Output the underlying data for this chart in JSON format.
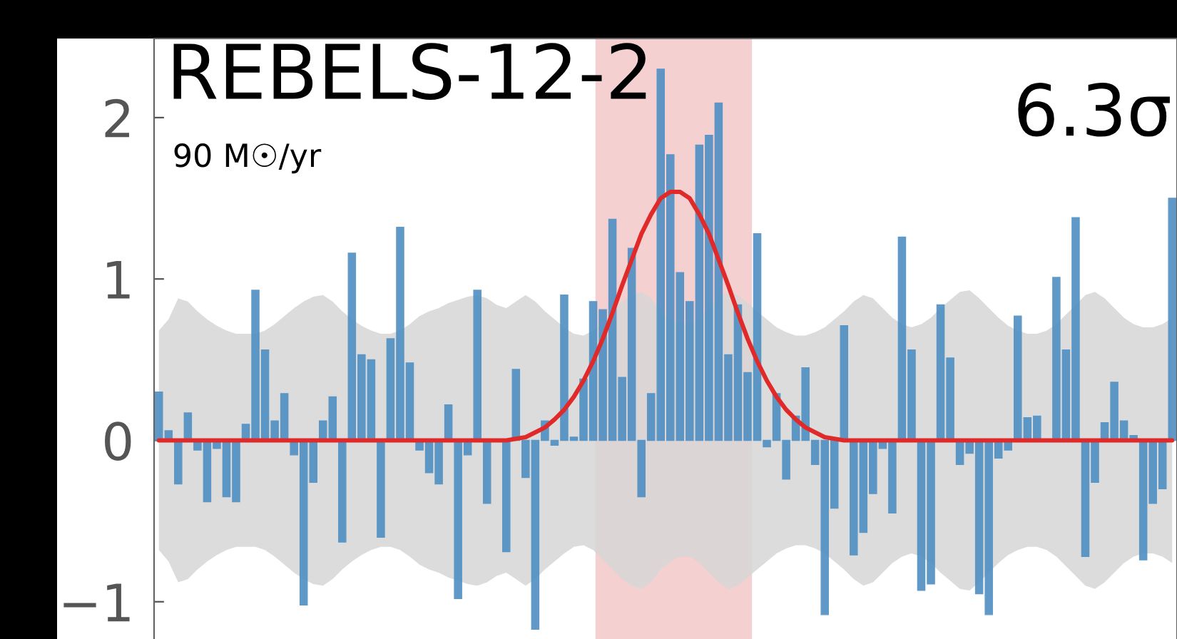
{
  "chart_data": {
    "type": "bar",
    "title": "REBELS-12-2",
    "subtitle": "90 M☉/yr",
    "annotations": [
      "6.3σ"
    ],
    "categories": [
      null,
      null,
      null,
      null,
      null,
      null,
      null,
      null,
      null,
      null,
      null,
      null,
      null,
      null,
      null,
      null,
      null,
      null,
      null,
      null,
      null,
      null,
      null,
      null,
      null,
      null,
      null,
      null,
      null,
      null,
      null,
      null,
      null,
      null,
      null,
      null,
      null,
      null,
      null,
      null,
      null,
      null,
      null,
      null,
      null,
      null,
      null,
      null,
      null,
      null,
      null,
      null,
      null,
      null,
      null,
      null,
      null,
      null,
      null,
      null,
      null,
      null,
      null,
      null,
      null,
      null,
      null,
      null,
      null,
      null,
      null,
      null,
      null,
      null,
      null,
      null,
      null,
      null,
      null,
      null,
      null,
      null,
      null,
      null,
      null,
      null,
      null,
      null,
      null,
      null,
      null,
      null,
      null,
      null,
      null,
      null,
      null,
      null,
      null,
      null,
      null,
      null,
      null,
      null,
      null,
      null
    ],
    "series": [
      {
        "color": "#4f8fc3",
        "values": [
          0.3,
          0.06,
          -0.27,
          0.17,
          -0.06,
          -0.38,
          -0.05,
          -0.35,
          -0.38,
          0.1,
          0.93,
          0.56,
          0.12,
          0.29,
          -0.09,
          -1.02,
          -0.26,
          0.12,
          0.27,
          -0.63,
          1.16,
          0.53,
          0.5,
          -0.6,
          0.63,
          1.32,
          0.48,
          -0.06,
          -0.2,
          -0.27,
          0.22,
          -0.98,
          -0.09,
          0.93,
          -0.39,
          null,
          -0.69,
          0.44,
          -0.23,
          -1.17,
          0.12,
          -0.03,
          0.9,
          0.02,
          0.38,
          0.86,
          0.81,
          1.37,
          0.39,
          1.19,
          -0.35,
          0.29,
          2.3,
          1.77,
          1.04,
          0.86,
          1.83,
          1.89,
          2.09,
          0.53,
          0.84,
          0.42,
          1.28,
          -0.04,
          0.29,
          -0.24,
          0.15,
          0.45,
          -0.15,
          -1.08,
          -0.42,
          0.71,
          -0.71,
          -0.57,
          -0.33,
          -0.05,
          -0.45,
          1.26,
          0.56,
          -0.93,
          -0.89,
          0.84,
          0.51,
          -0.15,
          -0.08,
          -0.95,
          -1.08,
          -0.11,
          -0.06,
          0.77,
          0.14,
          0.15,
          0.0,
          1.01,
          0.56,
          1.38,
          -0.72,
          -0.26,
          0.11,
          0.36,
          0.12,
          0.03,
          -0.74,
          -0.39,
          -0.3,
          1.5
        ]
      },
      {
        "type": "line",
        "color": "#e02a2a",
        "values": [
          0,
          0,
          0,
          0,
          0,
          0,
          0,
          0,
          0,
          0,
          0,
          0,
          0,
          0,
          0,
          0,
          0,
          0,
          0,
          0,
          0,
          0,
          0,
          0,
          0,
          0,
          0,
          0,
          0,
          0,
          0,
          0,
          0,
          0,
          0,
          0,
          0,
          0.01,
          0.02,
          0.05,
          0.08,
          0.13,
          0.19,
          0.27,
          0.37,
          0.49,
          0.63,
          0.79,
          0.96,
          1.12,
          1.28,
          1.4,
          1.5,
          1.54,
          1.54,
          1.5,
          1.4,
          1.28,
          1.12,
          0.96,
          0.79,
          0.63,
          0.49,
          0.37,
          0.27,
          0.19,
          0.13,
          0.08,
          0.05,
          0.02,
          0.01,
          0,
          0,
          0,
          0,
          0,
          0,
          0,
          0,
          0,
          0,
          0,
          0,
          0,
          0,
          0,
          0,
          0,
          0,
          0,
          0,
          0,
          0,
          0,
          0,
          0,
          0,
          0,
          0,
          0,
          0,
          0,
          0,
          0,
          0,
          0
        ],
        "upper": [
          0.68,
          0.75,
          0.88,
          0.86,
          0.8,
          0.75,
          0.71,
          0.68,
          0.66,
          0.66,
          0.66,
          0.68,
          0.72,
          0.77,
          0.82,
          0.86,
          0.89,
          0.9,
          0.86,
          0.8,
          0.75,
          0.71,
          0.68,
          0.66,
          0.66,
          0.68,
          0.72,
          0.77,
          0.8,
          0.82,
          0.85,
          0.87,
          0.89,
          0.9,
          0.88,
          0.84,
          0.82,
          0.86,
          0.9,
          0.86,
          0.8,
          0.75,
          0.7,
          0.66,
          0.65,
          0.68,
          0.74,
          0.8,
          0.86,
          0.9,
          0.92,
          0.88,
          0.8,
          0.75,
          0.72,
          0.72,
          0.76,
          0.82,
          0.88,
          0.92,
          0.9,
          0.85,
          0.8,
          0.75,
          0.7,
          0.67,
          0.65,
          0.65,
          0.67,
          0.7,
          0.75,
          0.8,
          0.86,
          0.9,
          0.88,
          0.82,
          0.76,
          0.72,
          0.7,
          0.72,
          0.76,
          0.82,
          0.87,
          0.92,
          0.93,
          0.88,
          0.82,
          0.76,
          0.71,
          0.68,
          0.66,
          0.66,
          0.68,
          0.72,
          0.78,
          0.84,
          0.9,
          0.92,
          0.88,
          0.82,
          0.76,
          0.72,
          0.7,
          0.7,
          0.72,
          0.76
        ],
        "lower": [
          -0.68,
          -0.75,
          -0.88,
          -0.86,
          -0.8,
          -0.75,
          -0.71,
          -0.68,
          -0.66,
          -0.66,
          -0.66,
          -0.68,
          -0.72,
          -0.77,
          -0.82,
          -0.86,
          -0.89,
          -0.9,
          -0.86,
          -0.8,
          -0.75,
          -0.71,
          -0.68,
          -0.66,
          -0.66,
          -0.68,
          -0.72,
          -0.77,
          -0.8,
          -0.82,
          -0.85,
          -0.87,
          -0.89,
          -0.9,
          -0.88,
          -0.84,
          -0.82,
          -0.86,
          -0.9,
          -0.86,
          -0.8,
          -0.75,
          -0.7,
          -0.66,
          -0.65,
          -0.68,
          -0.74,
          -0.8,
          -0.86,
          -0.9,
          -0.92,
          -0.88,
          -0.8,
          -0.75,
          -0.72,
          -0.72,
          -0.76,
          -0.82,
          -0.88,
          -0.92,
          -0.9,
          -0.85,
          -0.8,
          -0.75,
          -0.7,
          -0.67,
          -0.65,
          -0.65,
          -0.67,
          -0.7,
          -0.75,
          -0.8,
          -0.86,
          -0.9,
          -0.88,
          -0.82,
          -0.76,
          -0.72,
          -0.7,
          -0.72,
          -0.76,
          -0.82,
          -0.87,
          -0.92,
          -0.93,
          -0.88,
          -0.82,
          -0.76,
          -0.71,
          -0.68,
          -0.66,
          -0.66,
          -0.68,
          -0.72,
          -0.78,
          -0.84,
          -0.9,
          -0.92,
          -0.88,
          -0.82,
          -0.76,
          -0.72,
          -0.7,
          -0.7,
          -0.72,
          -0.76
        ]
      }
    ],
    "ylim": [
      -1.31,
      2.49
    ],
    "yticks": [
      {
        "value": -1,
        "label": "−1"
      },
      0,
      1,
      2
    ],
    "tick_labels": "y",
    "grid": false,
    "legend": false
  }
}
